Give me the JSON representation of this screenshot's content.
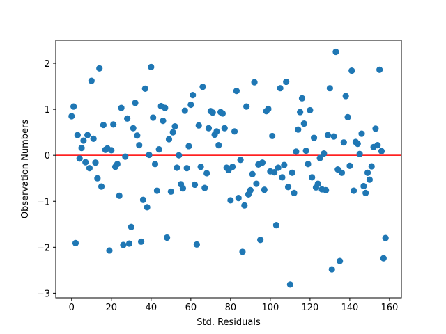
{
  "chart_data": {
    "type": "scatter",
    "xlabel": "Std. Residuals",
    "ylabel": "Observation Numbers",
    "xlim": [
      -8,
      166
    ],
    "ylim": [
      -3.1,
      2.5
    ],
    "xticks": [
      0,
      20,
      40,
      60,
      80,
      100,
      120,
      140,
      160
    ],
    "yticks": [
      -3,
      -2,
      -1,
      0,
      1,
      2
    ],
    "grid": false,
    "point_color": "#1f77b4",
    "reference_line": {
      "y": 0,
      "color": "#ff0000"
    },
    "x": [
      0,
      1,
      2,
      3,
      4,
      5,
      6,
      7,
      8,
      9,
      10,
      11,
      12,
      13,
      14,
      15,
      16,
      17,
      18,
      19,
      20,
      21,
      22,
      23,
      24,
      25,
      26,
      27,
      28,
      29,
      30,
      31,
      32,
      33,
      34,
      35,
      36,
      37,
      38,
      39,
      40,
      41,
      42,
      43,
      44,
      45,
      46,
      47,
      48,
      49,
      50,
      51,
      52,
      53,
      54,
      55,
      56,
      57,
      58,
      59,
      60,
      61,
      62,
      63,
      64,
      65,
      66,
      67,
      68,
      69,
      70,
      71,
      72,
      73,
      74,
      75,
      76,
      77,
      78,
      79,
      80,
      81,
      82,
      83,
      84,
      85,
      86,
      87,
      88,
      89,
      90,
      91,
      92,
      93,
      94,
      95,
      96,
      97,
      98,
      99,
      100,
      101,
      102,
      103,
      104,
      105,
      106,
      107,
      108,
      109,
      110,
      111,
      112,
      113,
      114,
      115,
      116,
      117,
      118,
      119,
      120,
      121,
      122,
      123,
      124,
      125,
      126,
      127,
      128,
      129,
      130,
      131,
      132,
      133,
      134,
      135,
      136,
      137,
      138,
      139,
      140,
      141,
      142,
      143,
      144,
      145,
      146,
      147,
      148,
      149,
      150,
      151,
      152,
      153,
      154,
      155,
      156,
      157,
      158
    ],
    "y": [
      0.85,
      1.06,
      -1.91,
      0.44,
      -0.07,
      0.16,
      0.32,
      -0.15,
      0.44,
      -0.28,
      1.62,
      0.36,
      -0.16,
      -0.5,
      1.89,
      -0.68,
      0.66,
      0.12,
      0.15,
      -2.07,
      0.11,
      0.67,
      -0.25,
      -0.19,
      -0.88,
      1.03,
      -1.95,
      -0.03,
      0.8,
      -1.92,
      -1.56,
      0.59,
      1.14,
      0.43,
      0.22,
      -1.88,
      -0.97,
      1.45,
      -1.13,
      0.01,
      1.92,
      0.82,
      -0.19,
      -0.77,
      0.13,
      1.07,
      0.75,
      1.03,
      -1.79,
      0.35,
      -0.79,
      0.5,
      0.63,
      -0.27,
      0.0,
      -0.63,
      -0.72,
      0.97,
      -0.28,
      0.2,
      1.1,
      1.31,
      -0.64,
      -1.94,
      0.65,
      -0.25,
      1.49,
      -0.71,
      -0.39,
      0.59,
      0.96,
      0.93,
      0.45,
      0.52,
      0.22,
      0.94,
      0.91,
      0.59,
      -0.27,
      -0.32,
      -0.98,
      -0.25,
      0.52,
      1.4,
      -0.93,
      -0.1,
      -2.1,
      -1.09,
      1.06,
      -0.85,
      -0.76,
      -0.41,
      1.59,
      -0.62,
      -0.2,
      -1.84,
      -0.16,
      -0.75,
      0.96,
      1.01,
      -0.35,
      0.42,
      -0.37,
      -1.52,
      -0.27,
      1.46,
      -0.48,
      -0.21,
      1.6,
      -0.69,
      -2.81,
      -0.38,
      -0.82,
      0.08,
      0.56,
      0.94,
      1.24,
      0.69,
      0.1,
      -0.19,
      0.98,
      -0.48,
      0.38,
      -0.7,
      -0.62,
      -0.06,
      -0.74,
      0.04,
      -0.76,
      0.44,
      1.46,
      -2.48,
      0.41,
      2.25,
      -0.31,
      -2.3,
      -0.38,
      0.28,
      1.29,
      0.83,
      -0.23,
      1.84,
      -0.77,
      0.29,
      0.25,
      0.03,
      0.47,
      -0.67,
      -0.82,
      -0.38,
      -0.53,
      -0.24,
      0.18,
      0.58,
      0.22,
      1.86,
      0.09,
      -2.24,
      -1.8
    ]
  }
}
